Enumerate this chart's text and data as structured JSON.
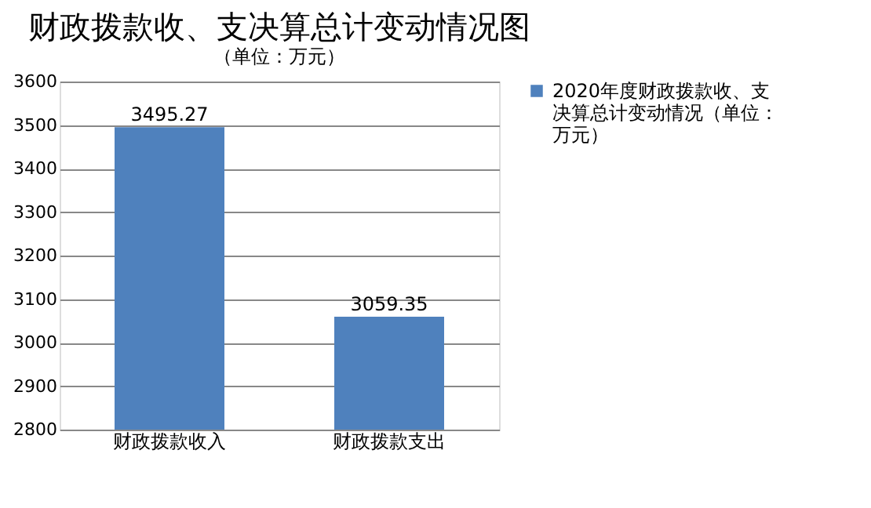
{
  "chart_data": {
    "type": "bar",
    "title": "财政拨款收、支决算总计变动情况图",
    "subtitle": "（单位：万元）",
    "categories": [
      "财政拨款收入",
      "财政拨款支出"
    ],
    "series": [
      {
        "name": "2020年度财政拨款收、支决算总计变动情况（单位：万元）",
        "color": "#4f81bd",
        "values": [
          3495.27,
          3059.35
        ]
      }
    ],
    "ylim": [
      2800,
      3600
    ],
    "yticks": [
      2800,
      2900,
      3000,
      3100,
      3200,
      3300,
      3400,
      3500,
      3600
    ],
    "grid": "y",
    "legend": "right",
    "data_labels": true
  }
}
